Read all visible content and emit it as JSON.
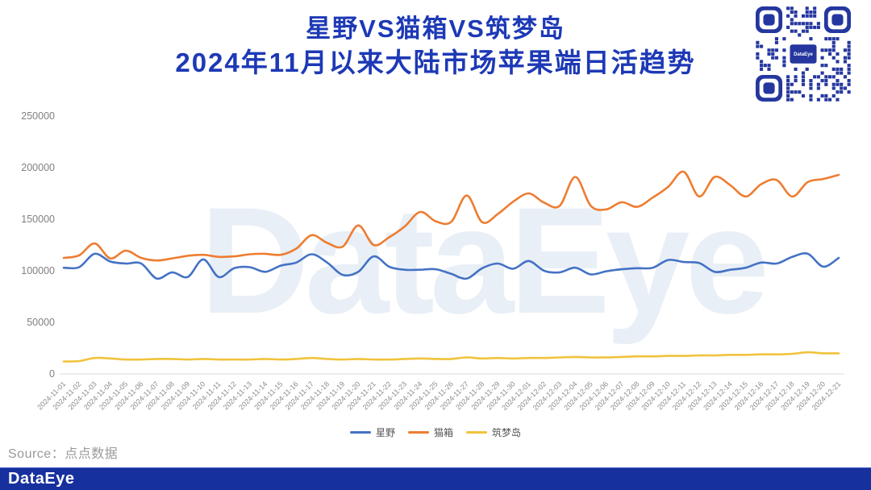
{
  "title": {
    "line1": "星野VS猫箱VS筑梦岛",
    "line2": "2024年11月以来大陆市场苹果端日活趋势"
  },
  "source": {
    "text": "Source：点点数据"
  },
  "footer": {
    "logo": "DataEye"
  },
  "watermark": {
    "text": "DataEye"
  },
  "qr": {
    "center_label": "DataEye"
  },
  "colors": {
    "title_blue": "#1D39B6",
    "footer_blue": "#16309E",
    "qr_blue": "#25379E",
    "axis_gray": "#7f7f7f",
    "watermark_blue": "#E9EFF6"
  },
  "chart_data": {
    "type": "line",
    "title": "星野VS猫箱VS筑梦岛 2024年11月以来大陆市场苹果端日活趋势",
    "xlabel": "",
    "ylabel": "",
    "grid": false,
    "legend_position": "bottom",
    "ylim": [
      0,
      250000
    ],
    "yticks": [
      0,
      50000,
      100000,
      150000,
      200000,
      250000
    ],
    "x": [
      "2024-11-01",
      "2024-11-02",
      "2024-11-03",
      "2024-11-04",
      "2024-11-05",
      "2024-11-06",
      "2024-11-07",
      "2024-11-08",
      "2024-11-09",
      "2024-11-10",
      "2024-11-11",
      "2024-11-12",
      "2024-11-13",
      "2024-11-14",
      "2024-11-15",
      "2024-11-16",
      "2024-11-17",
      "2024-11-18",
      "2024-11-19",
      "2024-11-20",
      "2024-11-21",
      "2024-11-22",
      "2024-11-23",
      "2024-11-24",
      "2024-11-25",
      "2024-11-26",
      "2024-11-27",
      "2024-11-28",
      "2024-11-29",
      "2024-11-30",
      "2024-12-01",
      "2024-12-02",
      "2024-12-03",
      "2024-12-04",
      "2024-12-05",
      "2024-12-06",
      "2024-12-07",
      "2024-12-08",
      "2024-12-09",
      "2024-12-10",
      "2024-12-11",
      "2024-12-12",
      "2024-12-13",
      "2024-12-14",
      "2024-12-15",
      "2024-12-16",
      "2024-12-17",
      "2024-12-18",
      "2024-12-19",
      "2024-12-20",
      "2024-12-21"
    ],
    "series": [
      {
        "name": "星野",
        "color": "#4472C4",
        "values": [
          103000,
          103500,
          116500,
          109000,
          107000,
          107000,
          92500,
          98500,
          94000,
          111000,
          94000,
          102500,
          103500,
          99000,
          105000,
          108000,
          116000,
          108000,
          96000,
          99000,
          114000,
          104000,
          101000,
          101000,
          101500,
          97000,
          92500,
          102500,
          107000,
          102000,
          109500,
          100000,
          98500,
          103000,
          96500,
          99500,
          101500,
          102500,
          103000,
          110500,
          108500,
          107500,
          99000,
          101000,
          103000,
          108000,
          107000,
          113500,
          116500,
          104000,
          112500
        ]
      },
      {
        "name": "猫箱",
        "color": "#ED7D31",
        "values": [
          112500,
          115000,
          126500,
          112000,
          119500,
          112500,
          110000,
          112000,
          114500,
          115500,
          113500,
          114000,
          116000,
          116500,
          115500,
          121500,
          134500,
          127000,
          123500,
          144000,
          125000,
          132500,
          143000,
          157000,
          148000,
          147500,
          173000,
          147000,
          155000,
          167000,
          175000,
          166000,
          163000,
          191000,
          163000,
          159500,
          166500,
          162000,
          171000,
          181500,
          196000,
          172000,
          191000,
          183000,
          172000,
          184000,
          188000,
          172000,
          186000,
          189000,
          193000
        ]
      },
      {
        "name": "筑梦岛",
        "color": "#F0C33C",
        "values": [
          12000,
          12500,
          15500,
          15000,
          14000,
          14000,
          14500,
          14500,
          14000,
          14500,
          14000,
          14000,
          14000,
          14500,
          14000,
          14500,
          15500,
          14500,
          14000,
          14500,
          14000,
          14000,
          14500,
          15000,
          14500,
          14500,
          16000,
          15000,
          15500,
          15000,
          15500,
          15500,
          16000,
          16500,
          16000,
          16000,
          16500,
          17000,
          17000,
          17500,
          17500,
          18000,
          18000,
          18500,
          18500,
          19000,
          19000,
          19500,
          21000,
          20000,
          20000
        ]
      }
    ]
  }
}
